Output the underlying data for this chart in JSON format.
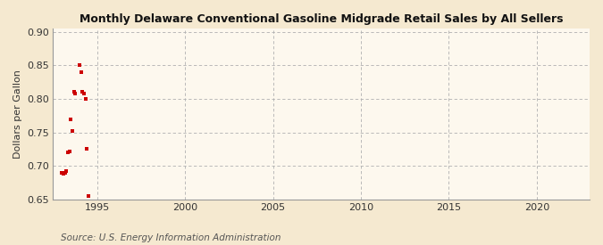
{
  "title": "Monthly Delaware Conventional Gasoline Midgrade Retail Sales by All Sellers",
  "ylabel": "Dollars per Gallon",
  "source_text": "Source: U.S. Energy Information Administration",
  "background_color": "#f5e9d0",
  "plot_background_color": "#fdf8ee",
  "grid_color": "#b0b0b0",
  "marker_color": "#cc0000",
  "xlim": [
    1992.5,
    2023
  ],
  "ylim": [
    0.65,
    0.905
  ],
  "yticks": [
    0.65,
    0.7,
    0.75,
    0.8,
    0.85,
    0.9
  ],
  "xticks": [
    1995,
    2000,
    2005,
    2010,
    2015,
    2020
  ],
  "data_x": [
    1993.0,
    1993.08,
    1993.17,
    1993.25,
    1993.33,
    1993.42,
    1993.5,
    1993.58,
    1993.67,
    1993.75,
    1994.0,
    1994.08,
    1994.17,
    1994.25,
    1994.33,
    1994.42,
    1994.5
  ],
  "data_y": [
    0.69,
    0.688,
    0.69,
    0.692,
    0.72,
    0.722,
    0.77,
    0.752,
    0.81,
    0.808,
    0.85,
    0.84,
    0.81,
    0.808,
    0.8,
    0.725,
    0.655
  ],
  "title_fontsize": 9,
  "ylabel_fontsize": 8,
  "tick_fontsize": 8,
  "source_fontsize": 7.5
}
